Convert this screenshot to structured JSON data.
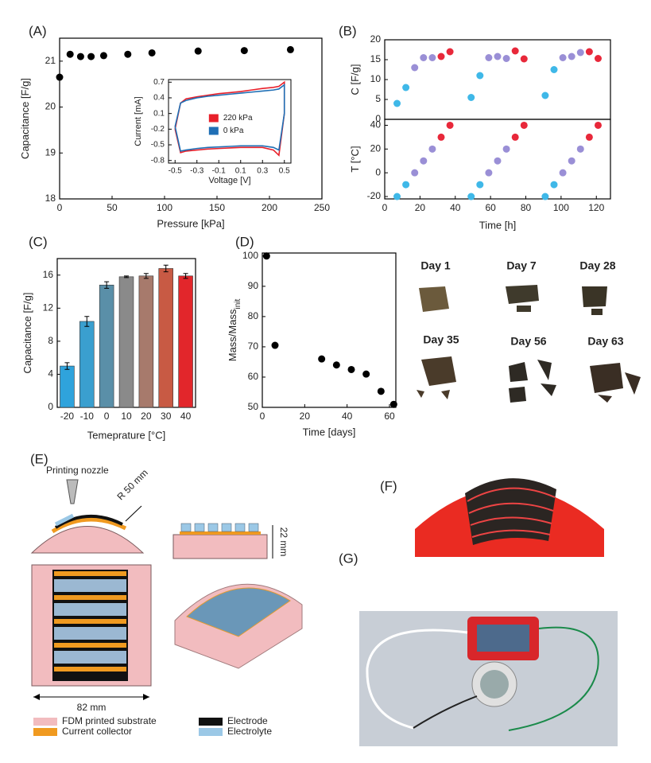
{
  "panel_labels": [
    "(A)",
    "(B)",
    "(C)",
    "(D)",
    "(E)",
    "(F)",
    "(G)"
  ],
  "chart_data": [
    {
      "type": "scatter",
      "xlabel": "Pressure [kPa]",
      "ylabel": "Capacitance [F/g]",
      "x": [
        0,
        10,
        20,
        30,
        42,
        65,
        88,
        132,
        176,
        220
      ],
      "values": [
        20.65,
        21.15,
        21.1,
        21.1,
        21.12,
        21.15,
        21.18,
        21.22,
        21.23,
        21.25
      ],
      "color": "#000000",
      "xlim": [
        0,
        250
      ],
      "ylim": [
        18,
        21.5
      ],
      "xticks": [
        0,
        50,
        100,
        150,
        200,
        250
      ],
      "yticks": [
        18,
        19,
        20,
        21
      ]
    },
    {
      "type": "line",
      "xlabel": "Voltage [V]",
      "ylabel": "Current [mA]",
      "x": [
        -0.5,
        -0.45,
        -0.4,
        -0.3,
        -0.2,
        -0.1,
        0,
        0.1,
        0.2,
        0.3,
        0.4,
        0.45,
        0.5,
        0.5,
        0.45,
        0.4,
        0.3,
        0.2,
        0.1,
        0,
        -0.1,
        -0.2,
        -0.3,
        -0.4,
        -0.45,
        -0.5
      ],
      "series": [
        {
          "name": "220 kPa",
          "color": "#e8202a",
          "values": [
            -0.2,
            0.3,
            0.38,
            0.42,
            0.45,
            0.48,
            0.5,
            0.52,
            0.55,
            0.58,
            0.6,
            0.62,
            0.7,
            0.1,
            -0.7,
            -0.6,
            -0.55,
            -0.55,
            -0.55,
            -0.56,
            -0.57,
            -0.58,
            -0.6,
            -0.62,
            -0.65,
            -0.2
          ]
        },
        {
          "name": "0 kPa",
          "color": "#1f6fb5",
          "values": [
            -0.15,
            0.3,
            0.35,
            0.4,
            0.43,
            0.45,
            0.47,
            0.49,
            0.51,
            0.53,
            0.55,
            0.57,
            0.65,
            0.1,
            -0.6,
            -0.55,
            -0.52,
            -0.52,
            -0.52,
            -0.53,
            -0.54,
            -0.55,
            -0.57,
            -0.6,
            -0.62,
            -0.15
          ]
        }
      ],
      "xlim": [
        -0.56,
        0.56
      ],
      "ylim": [
        -0.85,
        0.75
      ],
      "xticks": [
        -0.5,
        -0.3,
        -0.1,
        0.1,
        0.3,
        0.5
      ],
      "yticks": [
        0.7,
        0.4,
        0.1,
        -0.2,
        -0.5,
        -0.8
      ],
      "legend": "right"
    },
    {
      "type": "scatter",
      "ylabel": "C [F/g]",
      "series": [
        {
          "color": "#3fb8e8",
          "x": [
            7,
            12,
            49,
            54,
            91,
            96
          ],
          "values": [
            4,
            8,
            5.5,
            11,
            6,
            12.5
          ]
        },
        {
          "color": "#9a8fd6",
          "x": [
            17,
            22,
            27,
            59,
            64,
            69,
            101,
            106,
            111
          ],
          "values": [
            13,
            15.5,
            15.5,
            15.5,
            15.8,
            15.3,
            15.5,
            15.8,
            16.8
          ]
        },
        {
          "color": "#e8283a",
          "x": [
            32,
            37,
            74,
            79,
            116,
            121
          ],
          "values": [
            15.8,
            17,
            17.2,
            15.2,
            17,
            15.3
          ]
        }
      ],
      "xlim": [
        0,
        128
      ],
      "ylim": [
        0,
        20
      ],
      "yticks": [
        0,
        5,
        10,
        15,
        20
      ]
    },
    {
      "type": "scatter",
      "xlabel": "Time [h]",
      "ylabel": "T [°C]",
      "series": [
        {
          "color": "#3fb8e8",
          "x": [
            7,
            12,
            49,
            54,
            91,
            96
          ],
          "values": [
            -20,
            -10,
            -20,
            -10,
            -20,
            -10
          ]
        },
        {
          "color": "#9a8fd6",
          "x": [
            17,
            22,
            27,
            59,
            64,
            69,
            101,
            106,
            111
          ],
          "values": [
            0,
            10,
            20,
            0,
            10,
            20,
            0,
            10,
            20
          ]
        },
        {
          "color": "#e8283a",
          "x": [
            32,
            37,
            74,
            79,
            116,
            121
          ],
          "values": [
            30,
            40,
            30,
            40,
            30,
            40
          ]
        }
      ],
      "xlim": [
        0,
        128
      ],
      "ylim": [
        -22,
        45
      ],
      "xticks": [
        0,
        20,
        40,
        60,
        80,
        100,
        120
      ],
      "yticks": [
        -20,
        0,
        20,
        40
      ]
    },
    {
      "type": "bar",
      "xlabel": "Temeprature [°C]",
      "ylabel": "Capacitance [F/g]",
      "categories": [
        "-20",
        "-10",
        "0",
        "10",
        "20",
        "30",
        "40"
      ],
      "values": [
        5,
        10.4,
        14.8,
        15.8,
        15.9,
        16.8,
        15.9
      ],
      "errors": [
        0.4,
        0.6,
        0.4,
        0.1,
        0.3,
        0.4,
        0.3
      ],
      "colors": [
        "#2fa3dc",
        "#3a9fcf",
        "#5a8fa8",
        "#8a8a8a",
        "#a77a6c",
        "#c85a44",
        "#e2262b"
      ],
      "ylim": [
        0,
        18
      ],
      "yticks": [
        0,
        4,
        8,
        12,
        16
      ]
    },
    {
      "type": "scatter",
      "xlabel": "Time [days]",
      "ylabel": "Mass/Mass",
      "ylabel_sub": "init",
      "x": [
        2,
        6,
        28,
        35,
        42,
        49,
        56,
        62
      ],
      "values": [
        100,
        70.5,
        66,
        64,
        62.5,
        61,
        55.3,
        51
      ],
      "color": "#000000",
      "xlim": [
        0,
        63
      ],
      "ylim": [
        50,
        101
      ],
      "xticks": [
        0,
        20,
        40,
        60
      ],
      "yticks": [
        50,
        60,
        70,
        80,
        90,
        100
      ]
    }
  ],
  "photo_labels": [
    "Day 1",
    "Day 7",
    "Day 28",
    "Day 35",
    "Day 56",
    "Day 63"
  ],
  "diagram": {
    "nozzle_label": "Printing nozzle",
    "radius_label": "R 50 mm",
    "height_label": "22 mm",
    "width_label": "82 mm",
    "legend": [
      "FDM printed substrate",
      "Current collector",
      "Electrode",
      "Electrolyte"
    ]
  }
}
